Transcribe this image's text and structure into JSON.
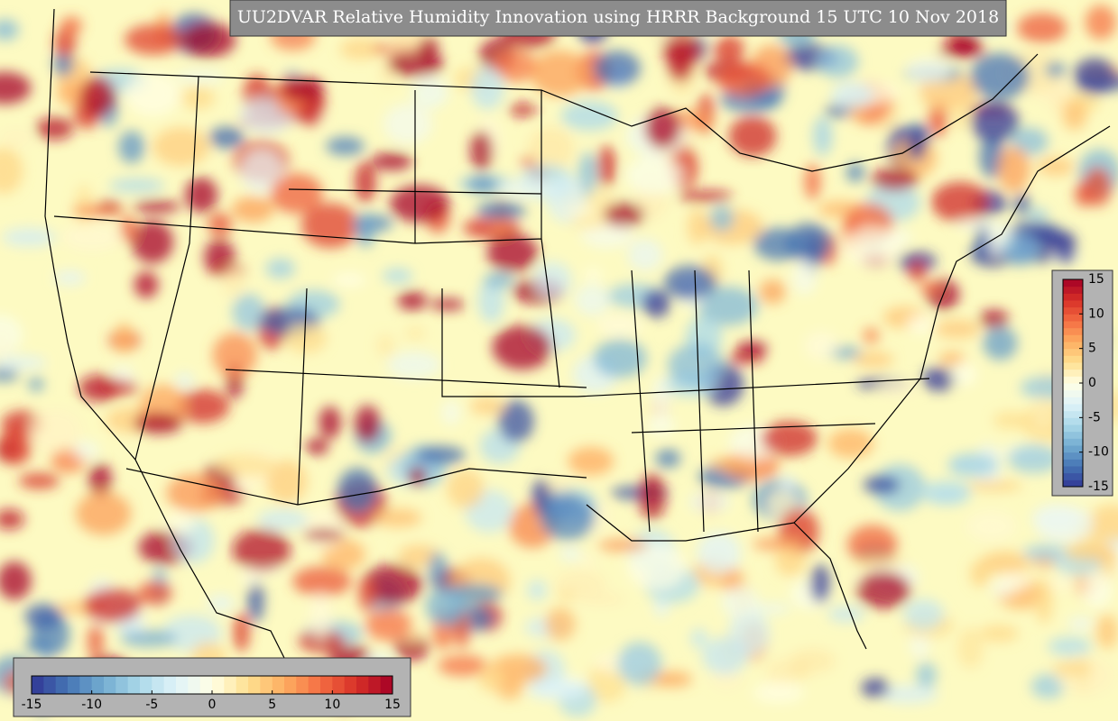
{
  "title": "UU2DVAR Relative Humidity Innovation using HRRR Background 15 UTC 10 Nov 2018",
  "colormap": [
    "#313695",
    "#4575b4",
    "#74add1",
    "#abd9e9",
    "#e0f3f8",
    "#ffffe5",
    "#fee090",
    "#fdae61",
    "#f46d43",
    "#d73027",
    "#a50026"
  ],
  "colorbar_right": {
    "range": [
      -15,
      15
    ],
    "ticks": [
      -15,
      -10,
      -5,
      0,
      5,
      10,
      15
    ]
  },
  "colorbar_bottom": {
    "range": [
      -15,
      15
    ],
    "ticks": [
      -15,
      -10,
      -5,
      0,
      5,
      10,
      15
    ]
  }
}
